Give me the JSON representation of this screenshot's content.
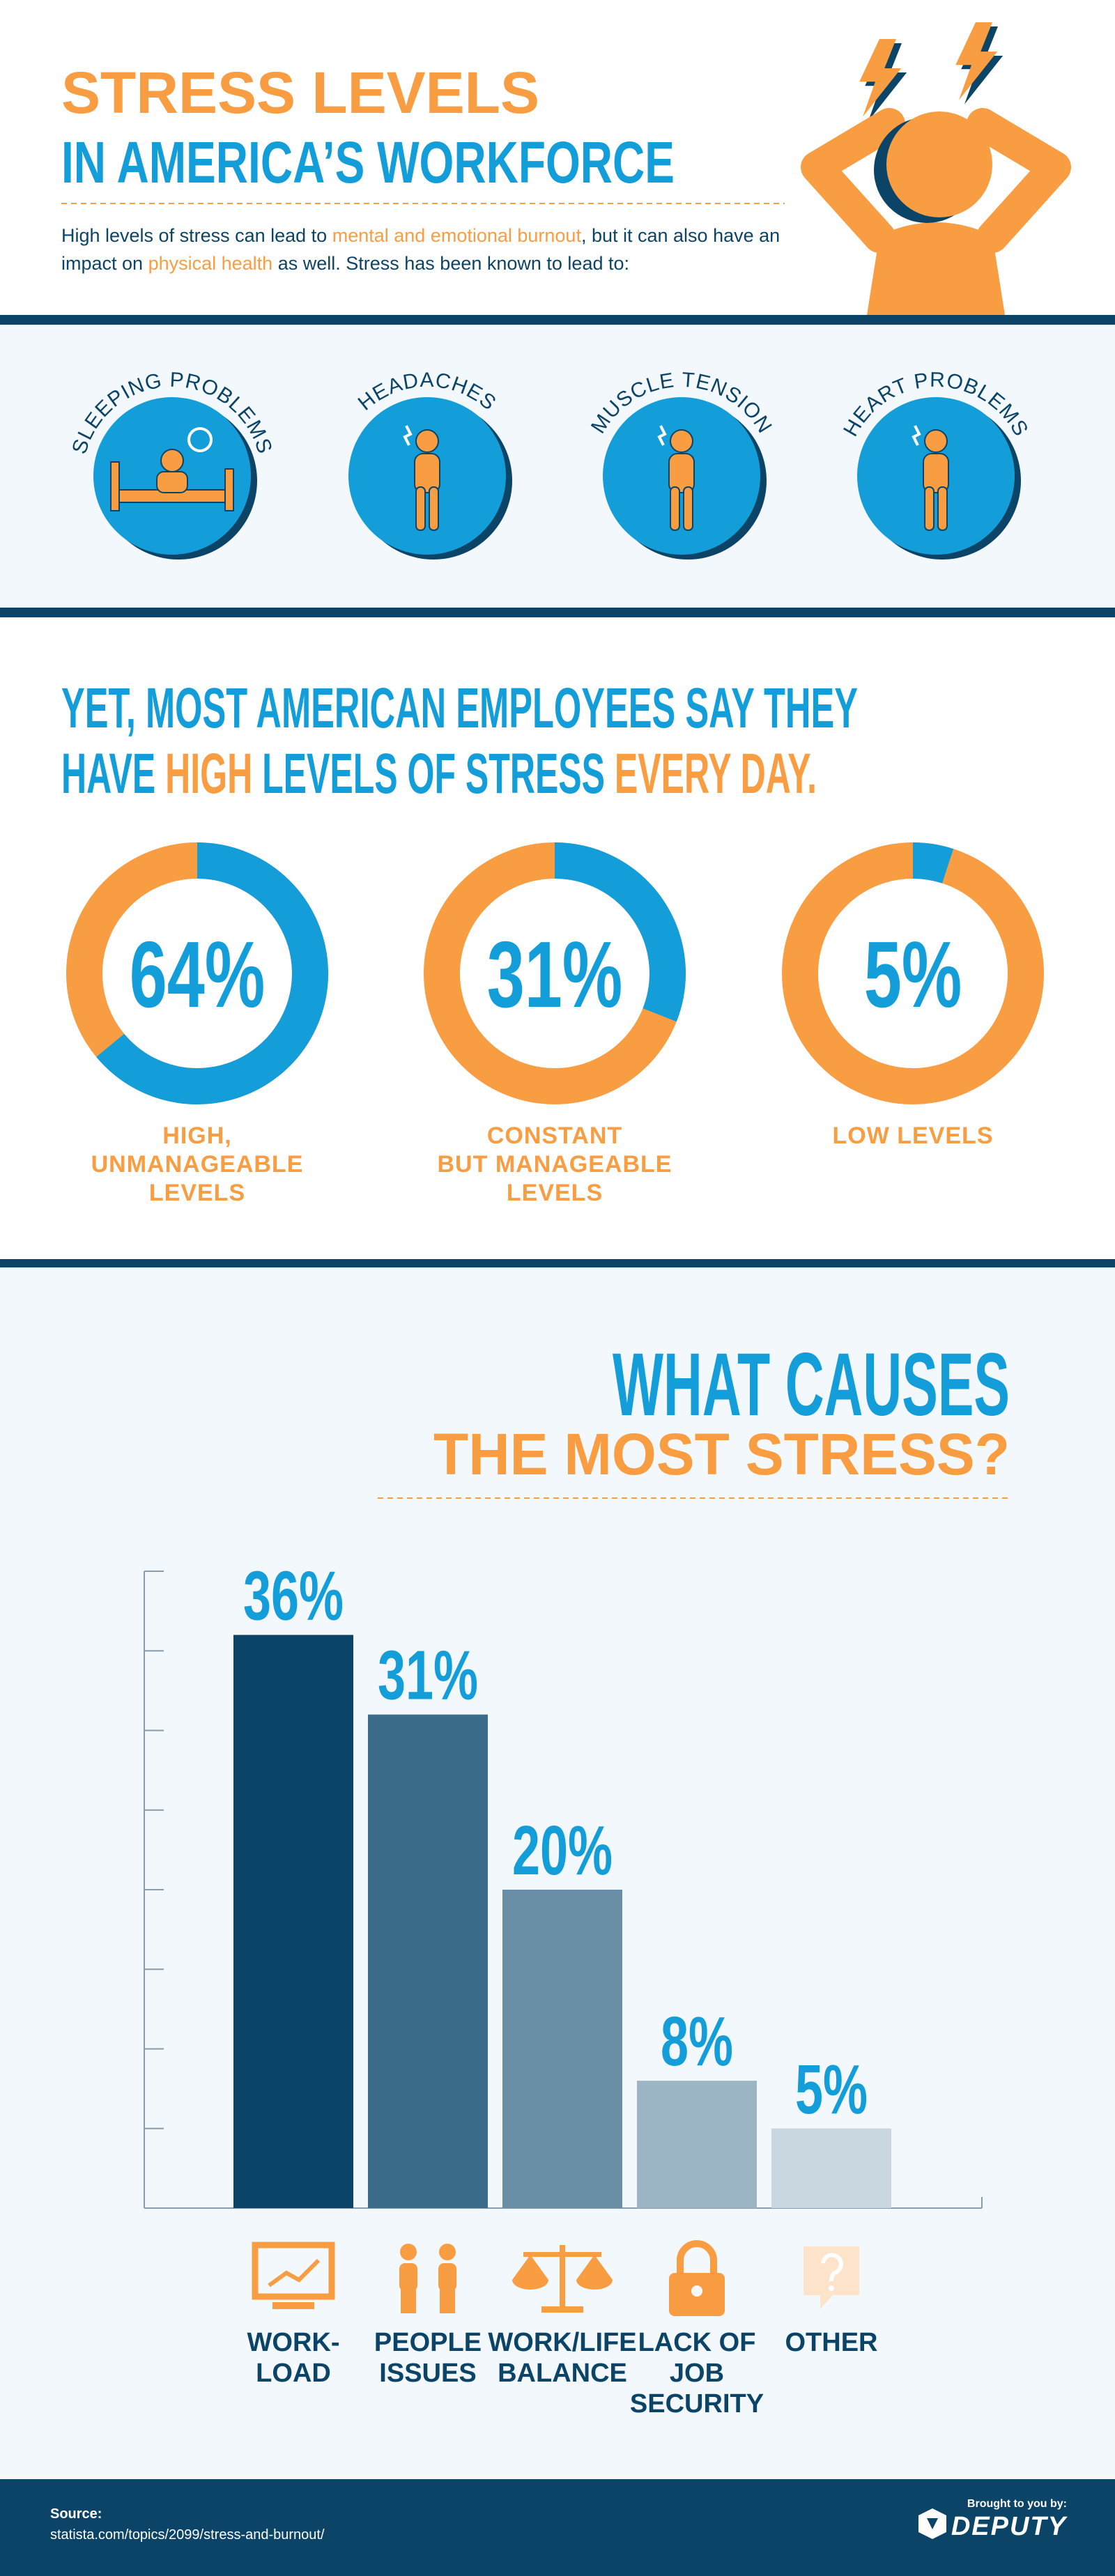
{
  "header": {
    "title_line1": "STRESS LEVELS",
    "title_line2": "IN AMERICA’S WORKFORCE",
    "intro": [
      "High levels of stress can lead to",
      "mental and emotional burnout",
      ", but it can also have an impact on",
      "physical health",
      "as well. Stress has been known to lead to:"
    ]
  },
  "symptoms": [
    "SLEEPING PROBLEMS",
    "HEADACHES",
    "MUSCLE TENSION",
    "HEART PROBLEMS"
  ],
  "headline": {
    "line1": "YET, MOST AMERICAN EMPLOYEES SAY THEY",
    "line2": [
      "HAVE",
      "HIGH",
      "LEVELS OF STRESS",
      "EVERY DAY."
    ]
  },
  "chart_data": [
    {
      "type": "donut",
      "categories": [
        "HIGH,\nUNMANAGEABLE\nLEVELS",
        "CONSTANT\nBUT MANAGEABLE\nLEVELS",
        "LOW LEVELS"
      ],
      "values": [
        64,
        31,
        5
      ],
      "value_labels": [
        "64%",
        "31%",
        "5%"
      ],
      "color": "#139ed9",
      "rest_color": "#f99d43"
    },
    {
      "type": "bar",
      "title": "WHAT CAUSES",
      "subtitle": "THE MOST STRESS?",
      "categories": [
        "WORK-\nLOAD",
        "PEOPLE\nISSUES",
        "WORK/LIFE\nBALANCE",
        "LACK OF\nJOB\nSECURITY",
        "OTHER"
      ],
      "values": [
        36,
        31,
        20,
        8,
        5
      ],
      "value_labels": [
        "36%",
        "31%",
        "20%",
        "8%",
        "5%"
      ],
      "colors": [
        "#0b4466",
        "#3b6c8c",
        "#6a8ea5",
        "#9bb5c4",
        "#c9d8e0"
      ],
      "ylim": [
        0,
        40
      ],
      "yticks": [
        0,
        5,
        10,
        15,
        20,
        25,
        30,
        35,
        40
      ]
    }
  ],
  "footer": {
    "source_label": "Source:",
    "source_url": "statista.com/topics/2099/stress-and-burnout/",
    "credit": "Brought to you by:",
    "brand": "DEPUTY"
  }
}
